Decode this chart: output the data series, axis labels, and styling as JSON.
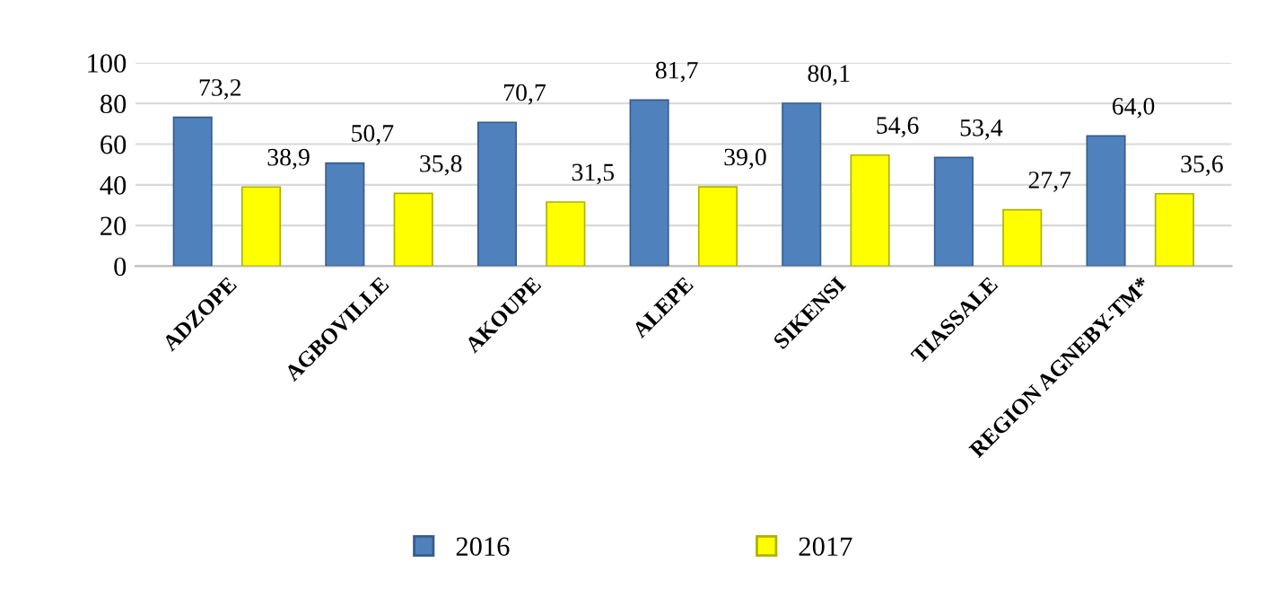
{
  "chart_data": {
    "type": "bar",
    "categories": [
      "ADZOPE",
      "AGBOVILLE",
      "AKOUPE",
      "ALEPE",
      "SIKENSI",
      "TIASSALE",
      "REGION AGNEBY-TM*"
    ],
    "series": [
      {
        "name": "2016",
        "color": "#4f81bd",
        "values": [
          73.2,
          50.7,
          70.7,
          81.7,
          80.1,
          53.4,
          64.0
        ],
        "value_labels": [
          "73,2",
          "50,7",
          "70,7",
          "81,7",
          "80,1",
          "53,4",
          "64,0"
        ]
      },
      {
        "name": "2017",
        "color": "#ffff00",
        "values": [
          38.9,
          35.8,
          31.5,
          39.0,
          54.6,
          27.7,
          35.6
        ],
        "value_labels": [
          "38,9",
          "35,8",
          "31,5",
          "39,0",
          "54,6",
          "27,7",
          "35,6"
        ]
      }
    ],
    "ylim": [
      0,
      100
    ],
    "yticks": [
      0,
      20,
      40,
      60,
      80,
      100
    ],
    "grid": "y",
    "legend": "bottom"
  }
}
